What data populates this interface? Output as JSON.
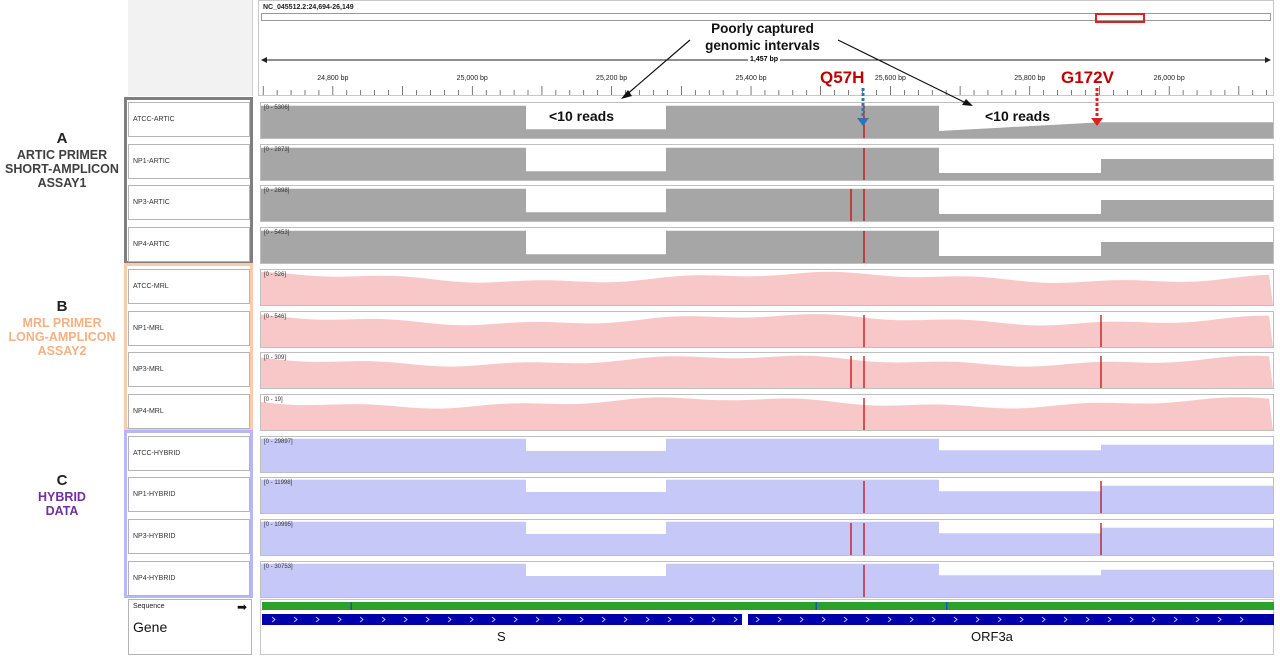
{
  "locus": "NC_045512.2:24,694-26,149",
  "span": "1,457 bp",
  "ruler_ticks": [
    {
      "label": "24,800 bp",
      "bp": 24800
    },
    {
      "label": "25,000 bp",
      "bp": 25000
    },
    {
      "label": "25,200 bp",
      "bp": 25200
    },
    {
      "label": "25,400 bp",
      "bp": 25400
    },
    {
      "label": "25,600 bp",
      "bp": 25600
    },
    {
      "label": "25,800 bp",
      "bp": 25800
    },
    {
      "label": "26,000 bp",
      "bp": 26000
    }
  ],
  "annotations": {
    "poorly_captured_line1": "Poorly captured",
    "poorly_captured_line2": "genomic intervals",
    "low_reads_1": "<10 reads",
    "low_reads_2": "<10 reads",
    "mut_1": "Q57H",
    "mut_2": "G172V"
  },
  "groups": [
    {
      "letter": "A",
      "line1": "ARTIC PRIMER",
      "line2": "SHORT-AMPLICON",
      "line3": "ASSAY1",
      "color": "#404040",
      "box_color": "#7f7f7f"
    },
    {
      "letter": "B",
      "line1": "MRL PRIMER",
      "line2": "LONG-AMPLICON",
      "line3": "ASSAY2",
      "color": "#f4b183",
      "box_color": "#f8cbad"
    },
    {
      "letter": "C",
      "line1": "HYBRID",
      "line2": "DATA",
      "line3": "",
      "color": "#7030a0",
      "box_color": "#b4b8f8"
    }
  ],
  "tracks": [
    {
      "name": "ATCC-ARTIC",
      "range": "[0 - 5306]",
      "profile": "artic",
      "color": "#a6a6a6"
    },
    {
      "name": "NP1-ARTIC",
      "range": "[0 - 2873]",
      "profile": "artic",
      "color": "#a6a6a6"
    },
    {
      "name": "NP3-ARTIC",
      "range": "[0 - 2898]",
      "profile": "artic",
      "color": "#a6a6a6"
    },
    {
      "name": "NP4-ARTIC",
      "range": "[0 - 5453]",
      "profile": "artic",
      "color": "#a6a6a6"
    },
    {
      "name": "ATCC-MRL",
      "range": "[0 - 526]",
      "profile": "mrl",
      "color": "#f8c8c8"
    },
    {
      "name": "NP1-MRL",
      "range": "[0 - 546]",
      "profile": "mrl",
      "color": "#f8c8c8"
    },
    {
      "name": "NP3-MRL",
      "range": "[0 - 309]",
      "profile": "mrl",
      "color": "#f8c8c8"
    },
    {
      "name": "NP4-MRL",
      "range": "[0 - 19]",
      "profile": "mrl",
      "color": "#f8c8c8"
    },
    {
      "name": "ATCC-HYBRID",
      "range": "[0 - 29897]",
      "profile": "hybrid",
      "color": "#c6c8f8"
    },
    {
      "name": "NP1-HYBRID",
      "range": "[0 - 11998]",
      "profile": "hybrid",
      "color": "#c6c8f8"
    },
    {
      "name": "NP3-HYBRID",
      "range": "[0 - 10995]",
      "profile": "hybrid",
      "color": "#c6c8f8"
    },
    {
      "name": "NP4-HYBRID",
      "range": "[0 - 30753]",
      "profile": "hybrid",
      "color": "#c6c8f8"
    }
  ],
  "bottom": {
    "sequence_label": "Sequence",
    "gene_label": "Gene",
    "genes": [
      "S",
      "ORF3a"
    ],
    "arrow_icon": "right-arrow-icon"
  },
  "colors": {
    "mutation_red": "#c00000",
    "blue_arrow": "#2e75b6",
    "gene_bar": "#0000aa"
  }
}
